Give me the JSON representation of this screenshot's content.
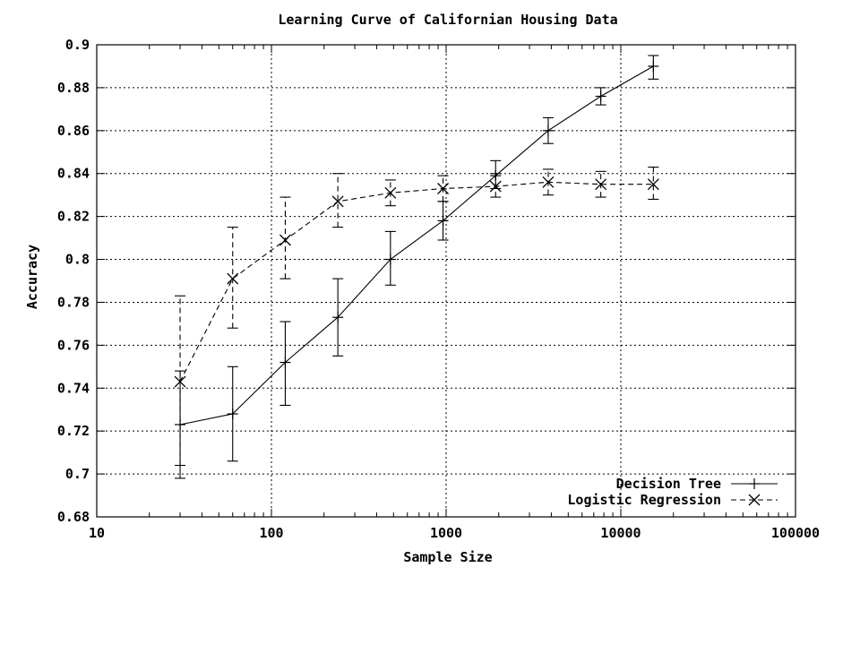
{
  "chart_data": {
    "type": "line",
    "title": "Learning Curve of Californian Housing Data",
    "xlabel": "Sample Size",
    "ylabel": "Accuracy",
    "x_scale": "log",
    "xlim": [
      10,
      100000
    ],
    "ylim": [
      0.68,
      0.9
    ],
    "grid": true,
    "legend_position": "bottom-right",
    "x_ticks": [
      10,
      100,
      1000,
      10000,
      100000
    ],
    "x_tick_labels": [
      "10",
      "100",
      "1000",
      "10000",
      "100000"
    ],
    "y_ticks": [
      0.68,
      0.7,
      0.72,
      0.74,
      0.76,
      0.78,
      0.8,
      0.82,
      0.84,
      0.86,
      0.88,
      0.9
    ],
    "y_tick_labels": [
      "0.68",
      "0.7",
      "0.72",
      "0.74",
      "0.76",
      "0.78",
      "0.8",
      "0.82",
      "0.84",
      "0.86",
      "0.88",
      "0.9"
    ],
    "series": [
      {
        "name": "Decision Tree",
        "marker": "plus",
        "line_style": "solid",
        "x": [
          30,
          60,
          120,
          240,
          480,
          960,
          1920,
          3840,
          7680,
          15360
        ],
        "y": [
          0.723,
          0.728,
          0.752,
          0.773,
          0.8,
          0.818,
          0.839,
          0.86,
          0.876,
          0.89
        ],
        "err_low": [
          0.698,
          0.706,
          0.732,
          0.755,
          0.788,
          0.809,
          0.833,
          0.854,
          0.872,
          0.884
        ],
        "err_high": [
          0.748,
          0.75,
          0.771,
          0.791,
          0.813,
          0.827,
          0.846,
          0.866,
          0.88,
          0.895
        ]
      },
      {
        "name": "Logistic Regression",
        "marker": "x",
        "line_style": "dashed",
        "x": [
          30,
          60,
          120,
          240,
          480,
          960,
          1920,
          3840,
          7680,
          15360
        ],
        "y": [
          0.743,
          0.791,
          0.809,
          0.827,
          0.831,
          0.833,
          0.834,
          0.836,
          0.835,
          0.835
        ],
        "err_low": [
          0.704,
          0.768,
          0.791,
          0.815,
          0.825,
          0.827,
          0.829,
          0.83,
          0.829,
          0.828
        ],
        "err_high": [
          0.783,
          0.815,
          0.829,
          0.84,
          0.837,
          0.839,
          0.84,
          0.842,
          0.841,
          0.843
        ]
      }
    ]
  }
}
